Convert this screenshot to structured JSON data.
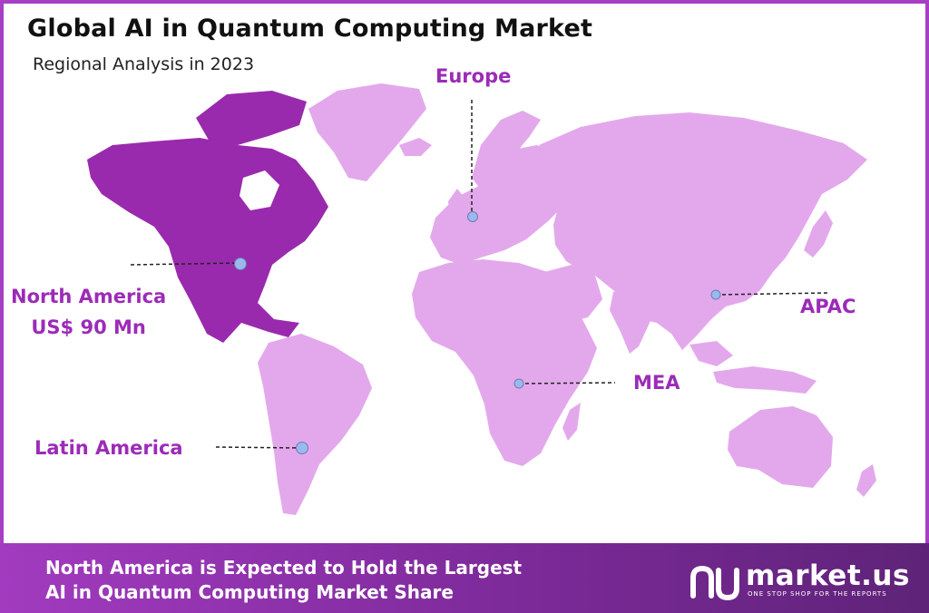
{
  "title": "Global AI in Quantum Computing Market",
  "subtitle": "Regional Analysis in 2023",
  "regions": {
    "europe": "Europe",
    "north_america": "North America",
    "north_america_value": "US$ 90 Mn",
    "apac": "APAC",
    "mea": "MEA",
    "latin_america": "Latin America"
  },
  "footer": {
    "line1": "North America is Expected to Hold the Largest",
    "line2": "AI in Quantum Computing Market Share"
  },
  "brand": {
    "name": "market.us",
    "tagline": "ONE STOP SHOP FOR THE REPORTS"
  },
  "colors": {
    "highlight_region": "#9a2aad",
    "other_regions": "#e3a8ec",
    "label": "#9c2bb8",
    "marker": "#9bb8ef",
    "border": "#a73fc4"
  }
}
